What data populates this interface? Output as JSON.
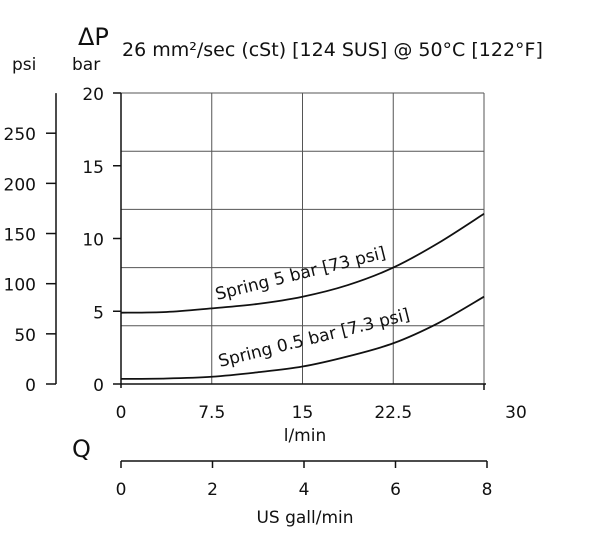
{
  "chart_data": {
    "type": "line",
    "title": "26 mm²/sec (cSt) [124 SUS] @ 50°C [122°F]",
    "ylabel": "ΔP",
    "y_units": {
      "left": "psi",
      "right": "bar"
    },
    "xlabel": "l/min",
    "x2_symbol": "Q",
    "x2_label": "US gall/min",
    "xlim": [
      0,
      30
    ],
    "ylim": [
      0,
      20
    ],
    "x2lim": [
      0,
      8
    ],
    "psi_lim": [
      0,
      290
    ],
    "x_ticks": [
      "0",
      "7.5",
      "15",
      "22.5",
      "30"
    ],
    "x_tick_values": [
      0,
      7.5,
      15,
      22.5,
      30
    ],
    "y_ticks": [
      "0",
      "5",
      "10",
      "15",
      "20"
    ],
    "y_tick_values": [
      0,
      5,
      10,
      15,
      20
    ],
    "psi_ticks": [
      "0",
      "50",
      "100",
      "150",
      "200",
      "250"
    ],
    "psi_tick_values": [
      0,
      50,
      100,
      150,
      200,
      250
    ],
    "x2_ticks": [
      "0",
      "2",
      "4",
      "6",
      "8"
    ],
    "x2_tick_values": [
      0,
      2,
      4,
      6,
      8
    ],
    "grid": true,
    "grid_y_values": [
      4,
      8,
      12,
      16,
      20
    ],
    "series": [
      {
        "name": "Spring 5 bar [73 psi]",
        "x": [
          0,
          3.75,
          7.5,
          11.25,
          15,
          18.75,
          22.5,
          26.25,
          30
        ],
        "y": [
          4.9,
          4.95,
          5.2,
          5.5,
          6.0,
          6.8,
          8.0,
          9.7,
          11.7
        ]
      },
      {
        "name": "Spring 0.5 bar [7.3 psi]",
        "x": [
          0,
          3.75,
          7.5,
          11.25,
          15,
          18.75,
          22.5,
          26.25,
          30
        ],
        "y": [
          0.35,
          0.38,
          0.5,
          0.8,
          1.2,
          1.9,
          2.8,
          4.2,
          6.0
        ]
      }
    ],
    "line_color": "#111111"
  }
}
